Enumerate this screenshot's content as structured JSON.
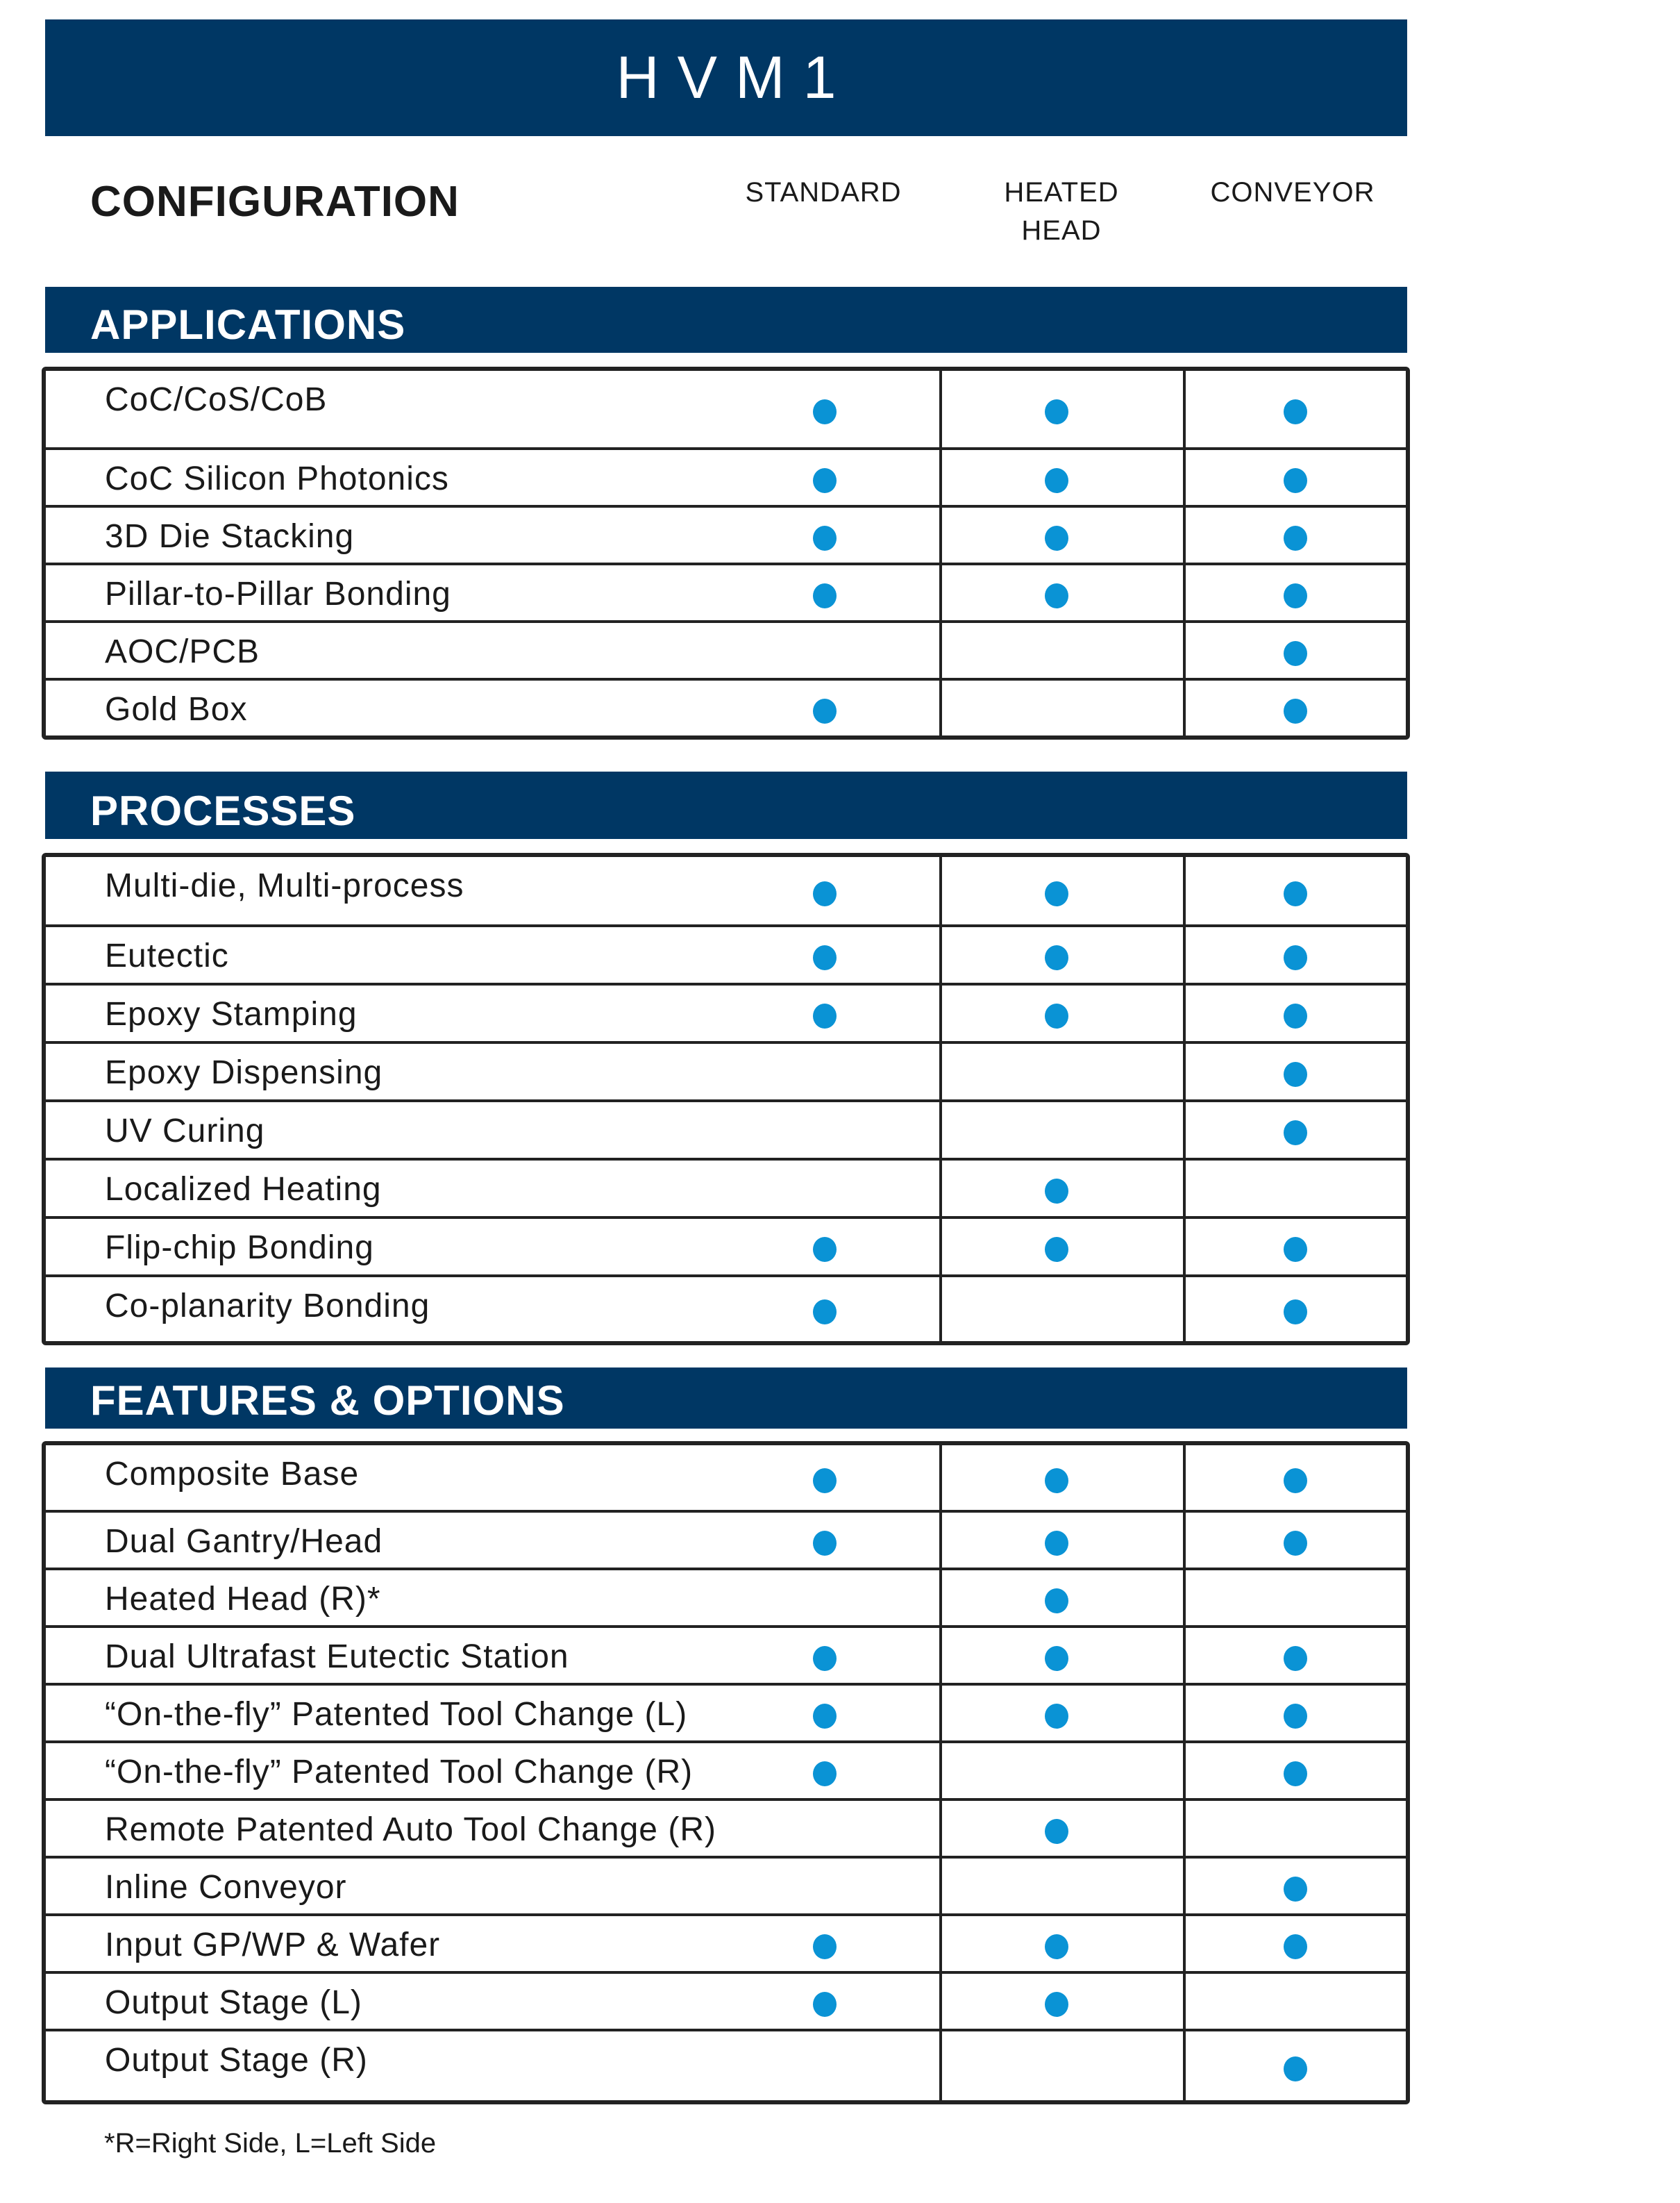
{
  "title": "HVM1",
  "configuration_label": "CONFIGURATION",
  "columns": [
    "STANDARD",
    "HEATED\nHEAD",
    "CONVEYOR"
  ],
  "colors": {
    "header_bg": "#003764",
    "dot": "#0a93d5"
  },
  "sections": [
    {
      "title": "APPLICATIONS",
      "rows": [
        {
          "label": "CoC/CoS/CoB",
          "marks": [
            true,
            true,
            true
          ]
        },
        {
          "label": "CoC Silicon Photonics",
          "marks": [
            true,
            true,
            true
          ]
        },
        {
          "label": "3D Die Stacking",
          "marks": [
            true,
            true,
            true
          ]
        },
        {
          "label": "Pillar-to-Pillar Bonding",
          "marks": [
            true,
            true,
            true
          ]
        },
        {
          "label": "AOC/PCB",
          "marks": [
            false,
            false,
            true
          ]
        },
        {
          "label": "Gold Box",
          "marks": [
            true,
            false,
            true
          ]
        }
      ]
    },
    {
      "title": "PROCESSES",
      "rows": [
        {
          "label": "Multi-die, Multi-process",
          "marks": [
            true,
            true,
            true
          ]
        },
        {
          "label": "Eutectic",
          "marks": [
            true,
            true,
            true
          ]
        },
        {
          "label": "Epoxy Stamping",
          "marks": [
            true,
            true,
            true
          ]
        },
        {
          "label": "Epoxy Dispensing",
          "marks": [
            false,
            false,
            true
          ]
        },
        {
          "label": "UV Curing",
          "marks": [
            false,
            false,
            true
          ]
        },
        {
          "label": "Localized Heating",
          "marks": [
            false,
            true,
            false
          ]
        },
        {
          "label": "Flip-chip Bonding",
          "marks": [
            true,
            true,
            true
          ]
        },
        {
          "label": "Co-planarity Bonding",
          "marks": [
            true,
            false,
            true
          ]
        }
      ]
    },
    {
      "title": "FEATURES & OPTIONS",
      "rows": [
        {
          "label": "Composite Base",
          "marks": [
            true,
            true,
            true
          ]
        },
        {
          "label": "Dual Gantry/Head",
          "marks": [
            true,
            true,
            true
          ]
        },
        {
          "label": "Heated Head (R)*",
          "marks": [
            false,
            true,
            false
          ]
        },
        {
          "label": "Dual Ultrafast Eutectic Station",
          "marks": [
            true,
            true,
            true
          ]
        },
        {
          "label": "“On-the-fly” Patented Tool Change (L)",
          "marks": [
            true,
            true,
            true
          ]
        },
        {
          "label": "“On-the-fly” Patented Tool Change (R)",
          "marks": [
            true,
            false,
            true
          ]
        },
        {
          "label": "Remote Patented Auto Tool Change (R)",
          "marks": [
            false,
            true,
            false
          ]
        },
        {
          "label": "Inline Conveyor",
          "marks": [
            false,
            false,
            true
          ]
        },
        {
          "label": "Input GP/WP & Wafer",
          "marks": [
            true,
            true,
            true
          ]
        },
        {
          "label": "Output Stage (L)",
          "marks": [
            true,
            true,
            false
          ]
        },
        {
          "label": "Output Stage (R)",
          "marks": [
            false,
            false,
            true
          ]
        }
      ]
    }
  ],
  "footnote": "*R=Right Side, L=Left Side"
}
